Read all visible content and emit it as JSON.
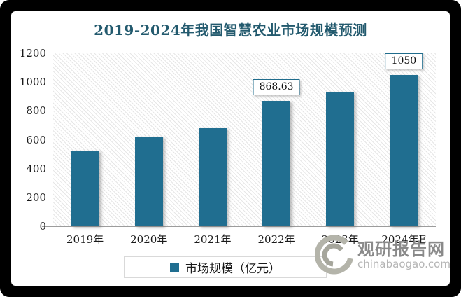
{
  "chart_data": {
    "type": "bar",
    "title": "2019-2024年我国智慧农业市场规模预测",
    "categories": [
      "2019年",
      "2020年",
      "2021年",
      "2022年",
      "2023年",
      "2024年E"
    ],
    "values": [
      525,
      620,
      680,
      868.63,
      935,
      1050
    ],
    "data_labels": [
      "",
      "",
      "",
      "868.63",
      "",
      "1050"
    ],
    "xlabel": "",
    "ylabel": "",
    "ylim": [
      0,
      1200
    ],
    "yticks": [
      0,
      200,
      400,
      600,
      800,
      1000,
      1200
    ],
    "grid": false,
    "plot_background": "light-diagonal-hatch",
    "legend_position": "bottom",
    "legend_entries": [
      "市场规模（亿元）"
    ]
  },
  "legend": {
    "label": "市场规模（亿元）"
  },
  "watermark": {
    "site_name": "观研报告网",
    "site_url": "chinabaogao.com"
  },
  "colors": {
    "bar": "#206E90",
    "title": "#235A6E",
    "label_box_border": "#1F6C8C",
    "axis_line": "#9C9C9C",
    "legend_border": "#D9D9D9",
    "watermark_name": "#8A8A8A",
    "watermark_url": "#B5B5B5",
    "hatch_line": "#E6E6E6"
  }
}
